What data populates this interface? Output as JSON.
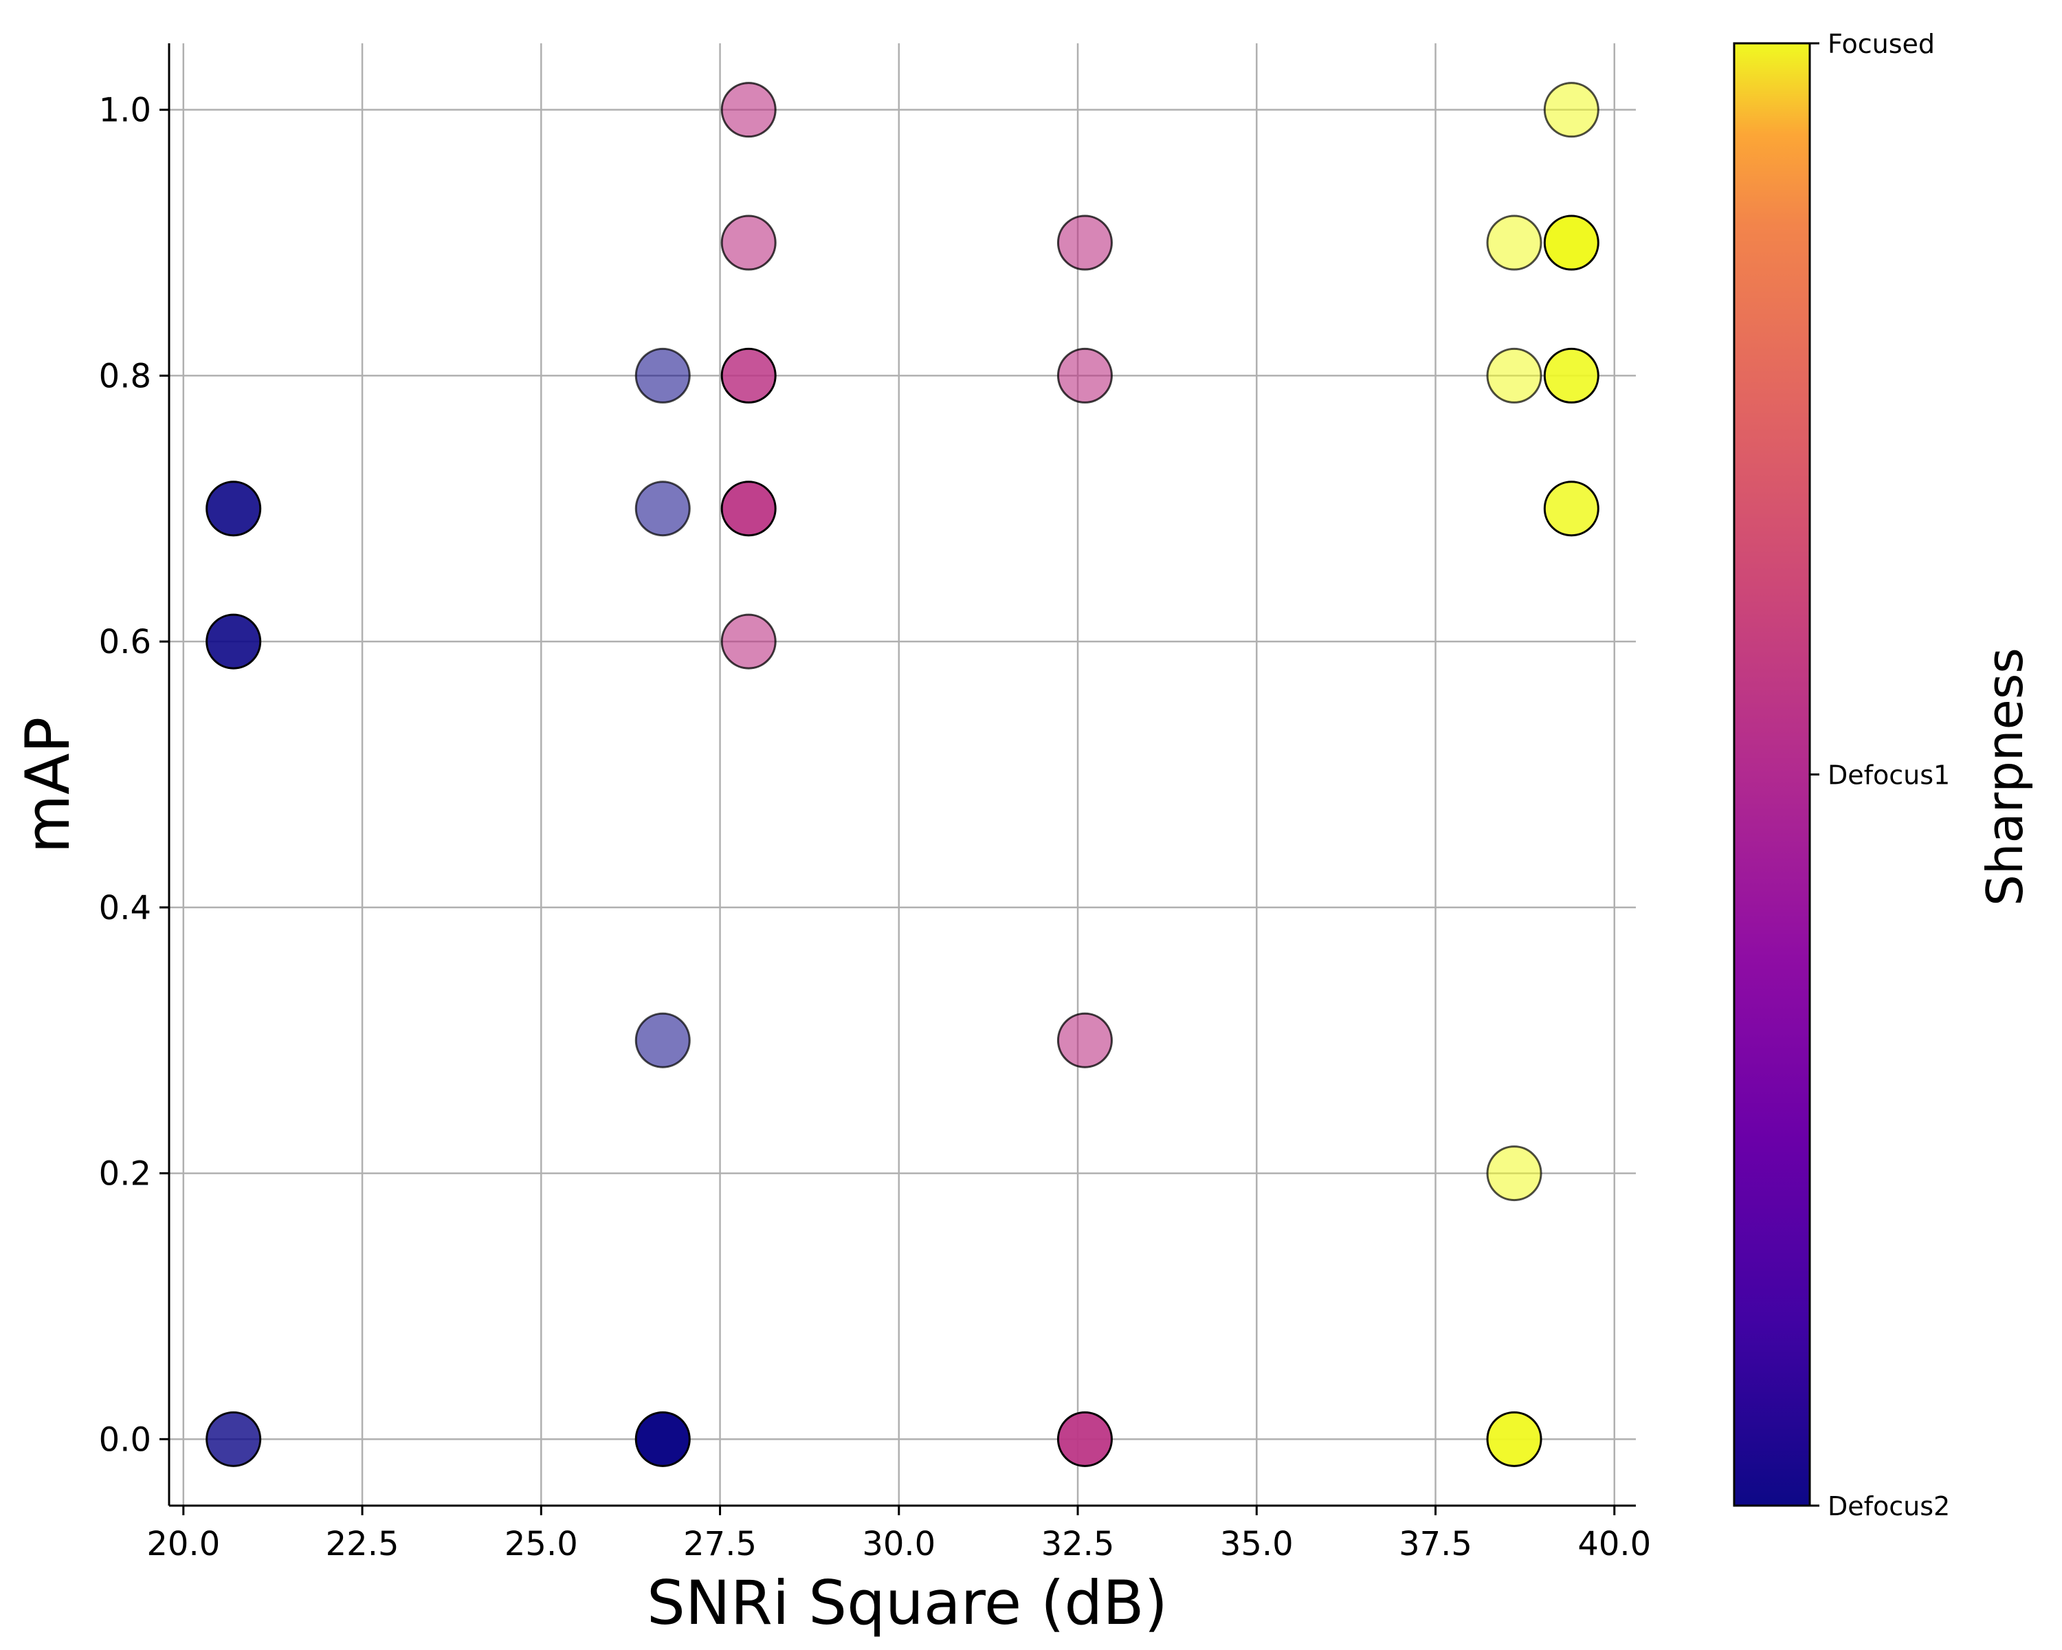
{
  "chart_data": {
    "type": "scatter",
    "xlabel": "SNRi Square (dB)",
    "ylabel": "mAP",
    "xlim": [
      19.8,
      40.3
    ],
    "ylim": [
      -0.05,
      1.05
    ],
    "xticks": [
      "20.0",
      "22.5",
      "25.0",
      "27.5",
      "30.0",
      "32.5",
      "35.0",
      "37.5",
      "40.0"
    ],
    "yticks": [
      "0.0",
      "0.2",
      "0.4",
      "0.6",
      "0.8",
      "1.0"
    ],
    "grid": true,
    "colorbar": {
      "label": "Sharpness",
      "colormap": "plasma",
      "ticks": [
        "Defocus2",
        "Defocus1",
        "Focused"
      ]
    },
    "points": [
      {
        "x": 20.7,
        "y": 0.7,
        "c": 0.0,
        "alpha": 0.9
      },
      {
        "x": 20.7,
        "y": 0.6,
        "c": 0.0,
        "alpha": 0.9
      },
      {
        "x": 20.7,
        "y": 0.0,
        "c": 0.0,
        "alpha": 0.8
      },
      {
        "x": 26.7,
        "y": 0.8,
        "c": 0.0,
        "alpha": 0.55
      },
      {
        "x": 26.7,
        "y": 0.7,
        "c": 0.0,
        "alpha": 0.55
      },
      {
        "x": 26.7,
        "y": 0.3,
        "c": 0.0,
        "alpha": 0.55
      },
      {
        "x": 26.7,
        "y": 0.0,
        "c": 0.0,
        "alpha": 1.0
      },
      {
        "x": 27.9,
        "y": 1.0,
        "c": 0.55,
        "alpha": 0.6
      },
      {
        "x": 27.9,
        "y": 0.9,
        "c": 0.55,
        "alpha": 0.6
      },
      {
        "x": 27.9,
        "y": 0.8,
        "c": 0.55,
        "alpha": 0.85
      },
      {
        "x": 27.9,
        "y": 0.7,
        "c": 0.55,
        "alpha": 0.95
      },
      {
        "x": 27.9,
        "y": 0.6,
        "c": 0.55,
        "alpha": 0.6
      },
      {
        "x": 32.6,
        "y": 0.9,
        "c": 0.55,
        "alpha": 0.6
      },
      {
        "x": 32.6,
        "y": 0.8,
        "c": 0.55,
        "alpha": 0.6
      },
      {
        "x": 32.6,
        "y": 0.3,
        "c": 0.55,
        "alpha": 0.6
      },
      {
        "x": 32.6,
        "y": 0.0,
        "c": 0.55,
        "alpha": 0.95
      },
      {
        "x": 38.6,
        "y": 0.9,
        "c": 1.0,
        "alpha": 0.55
      },
      {
        "x": 38.6,
        "y": 0.8,
        "c": 1.0,
        "alpha": 0.55
      },
      {
        "x": 38.6,
        "y": 0.2,
        "c": 1.0,
        "alpha": 0.55
      },
      {
        "x": 38.6,
        "y": 0.0,
        "c": 1.0,
        "alpha": 0.95
      },
      {
        "x": 39.4,
        "y": 1.0,
        "c": 1.0,
        "alpha": 0.55
      },
      {
        "x": 39.4,
        "y": 0.9,
        "c": 1.0,
        "alpha": 1.0
      },
      {
        "x": 39.4,
        "y": 0.8,
        "c": 1.0,
        "alpha": 0.9
      },
      {
        "x": 39.4,
        "y": 0.7,
        "c": 1.0,
        "alpha": 0.85
      }
    ]
  }
}
